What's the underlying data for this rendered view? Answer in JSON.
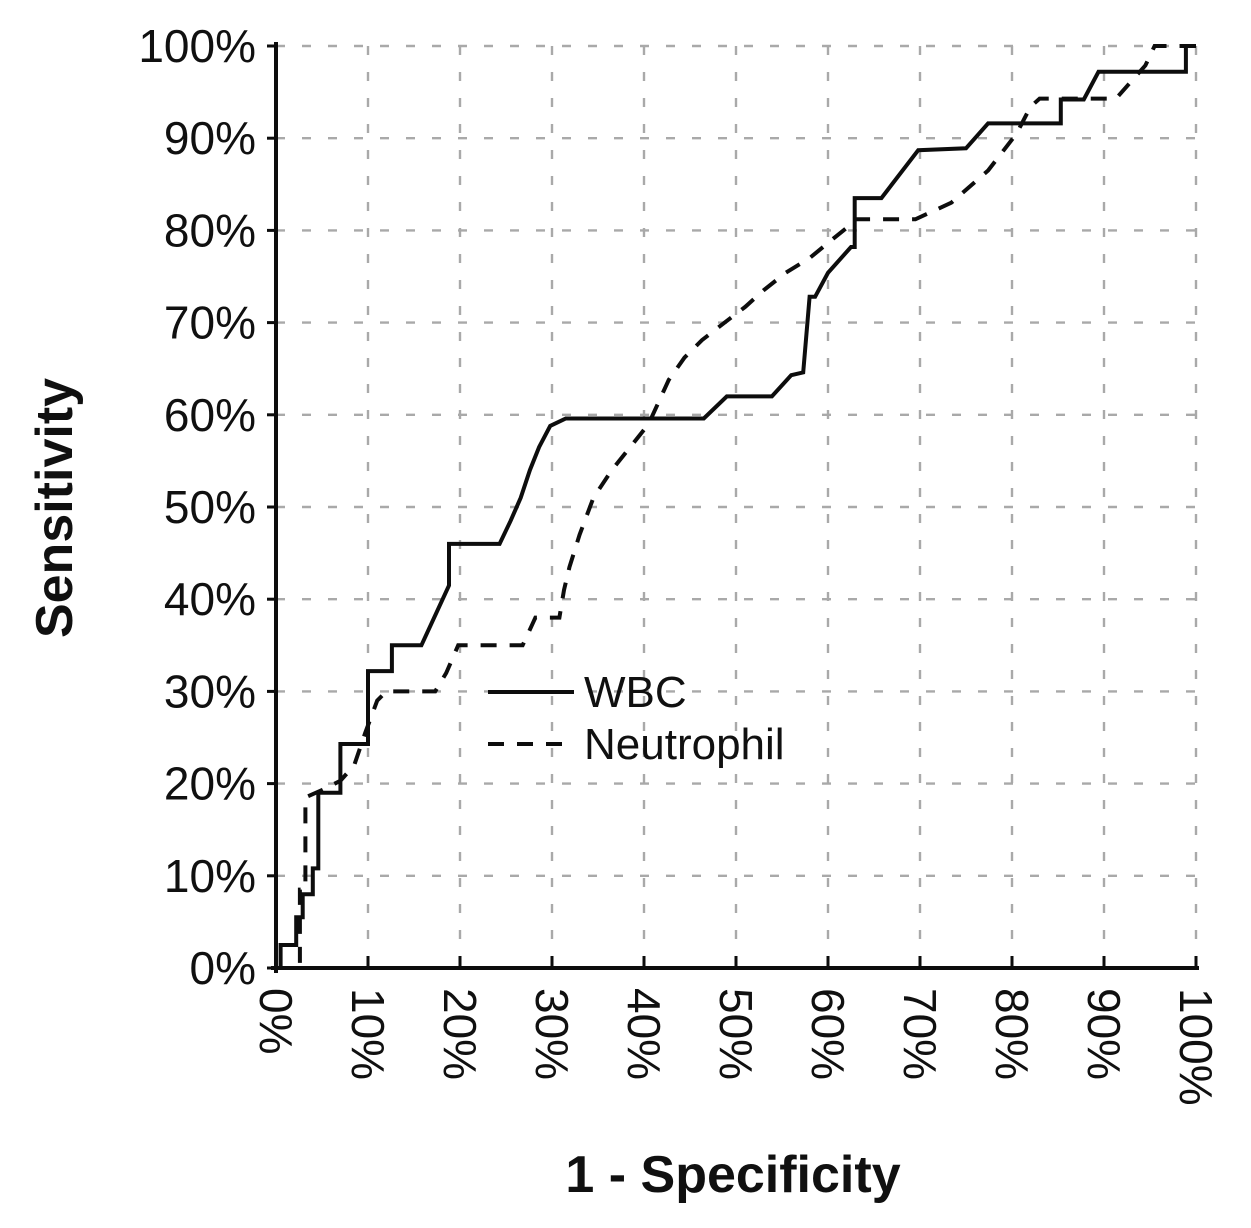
{
  "chart_data": {
    "type": "line",
    "subtype": "roc-curve",
    "title": "",
    "xlabel": "1 - Specificity",
    "ylabel": "Sensitivity",
    "xlim": [
      0,
      100
    ],
    "ylim": [
      0,
      100
    ],
    "grid": true,
    "x_tick_labels": [
      "0%",
      "10%",
      "20%",
      "30%",
      "40%",
      "50%",
      "60%",
      "70%",
      "80%",
      "90%",
      "100%"
    ],
    "y_tick_labels": [
      "0%",
      "10%",
      "20%",
      "30%",
      "40%",
      "50%",
      "60%",
      "70%",
      "80%",
      "90%",
      "100%"
    ],
    "x_tick_values": [
      0,
      10,
      20,
      30,
      40,
      50,
      60,
      70,
      80,
      90,
      100
    ],
    "y_tick_values": [
      0,
      10,
      20,
      30,
      40,
      50,
      60,
      70,
      80,
      90,
      100
    ],
    "legend_position": "inside-center-left",
    "series": [
      {
        "name": "WBC",
        "style": "solid",
        "color": "#0d0d0d",
        "points": [
          [
            0,
            0
          ],
          [
            0.5,
            0
          ],
          [
            0.5,
            2.5
          ],
          [
            2.2,
            2.5
          ],
          [
            2.2,
            5.5
          ],
          [
            2.9,
            5.5
          ],
          [
            2.9,
            8
          ],
          [
            4,
            8
          ],
          [
            4,
            10.8
          ],
          [
            4.6,
            10.8
          ],
          [
            4.6,
            19
          ],
          [
            7,
            19
          ],
          [
            7,
            24.3
          ],
          [
            10,
            24.3
          ],
          [
            10,
            32.2
          ],
          [
            12.6,
            32.2
          ],
          [
            12.6,
            35
          ],
          [
            15.8,
            35
          ],
          [
            18.8,
            41.5
          ],
          [
            18.8,
            46
          ],
          [
            24.3,
            46
          ],
          [
            25.5,
            48.5
          ],
          [
            26.6,
            51
          ],
          [
            27.6,
            54
          ],
          [
            28.6,
            56.5
          ],
          [
            29.8,
            58.8
          ],
          [
            31.5,
            59.6
          ],
          [
            46.5,
            59.6
          ],
          [
            49,
            62
          ],
          [
            53.9,
            62
          ],
          [
            56,
            64.3
          ],
          [
            57.3,
            64.6
          ],
          [
            58,
            72.8
          ],
          [
            58.6,
            72.8
          ],
          [
            60,
            75.4
          ],
          [
            62.5,
            78.2
          ],
          [
            62.9,
            78.2
          ],
          [
            62.9,
            83.5
          ],
          [
            65.8,
            83.5
          ],
          [
            69.8,
            88.7
          ],
          [
            75,
            88.9
          ],
          [
            77.4,
            91.6
          ],
          [
            85.3,
            91.6
          ],
          [
            85.3,
            94.2
          ],
          [
            87.8,
            94.2
          ],
          [
            89.4,
            97.2
          ],
          [
            98.9,
            97.2
          ],
          [
            98.9,
            100
          ],
          [
            100,
            100
          ]
        ]
      },
      {
        "name": "Neutrophil",
        "style": "dashed",
        "color": "#0d0d0d",
        "points": [
          [
            0,
            0
          ],
          [
            2.6,
            0
          ],
          [
            2.6,
            8.5
          ],
          [
            3.2,
            8.5
          ],
          [
            3.2,
            18.5
          ],
          [
            5,
            19.3
          ],
          [
            7,
            20.3
          ],
          [
            8.5,
            22
          ],
          [
            9.7,
            25.5
          ],
          [
            11,
            29
          ],
          [
            12,
            30
          ],
          [
            17.3,
            30
          ],
          [
            18.5,
            32
          ],
          [
            19.8,
            35
          ],
          [
            26.8,
            35
          ],
          [
            27.5,
            36.5
          ],
          [
            28.2,
            38
          ],
          [
            30.8,
            38
          ],
          [
            31.3,
            41
          ],
          [
            31.9,
            43.5
          ],
          [
            33,
            47
          ],
          [
            34.5,
            51
          ],
          [
            36.5,
            54
          ],
          [
            38.5,
            56.5
          ],
          [
            40.5,
            59
          ],
          [
            42.7,
            63.8
          ],
          [
            44.4,
            66.2
          ],
          [
            46.3,
            68.1
          ],
          [
            48.5,
            69.8
          ],
          [
            51,
            71.7
          ],
          [
            53,
            73.5
          ],
          [
            55.4,
            75.4
          ],
          [
            58,
            77
          ],
          [
            60.8,
            79.3
          ],
          [
            62.3,
            80.5
          ],
          [
            62.8,
            81.2
          ],
          [
            69.5,
            81.2
          ],
          [
            73.4,
            83
          ],
          [
            77.4,
            86.5
          ],
          [
            80.5,
            90.5
          ],
          [
            82,
            93.4
          ],
          [
            83,
            94.3
          ],
          [
            91.3,
            94.3
          ],
          [
            94.5,
            97.9
          ],
          [
            95.5,
            100
          ],
          [
            100,
            100
          ]
        ]
      }
    ]
  },
  "styles": {
    "background": "#ffffff",
    "axis_color": "#0d0d0d",
    "grid_color": "#a9a9a9",
    "text_color": "#101010",
    "curve_width": 4,
    "curve_dash": "16 13",
    "grid_dash": "9 17"
  }
}
